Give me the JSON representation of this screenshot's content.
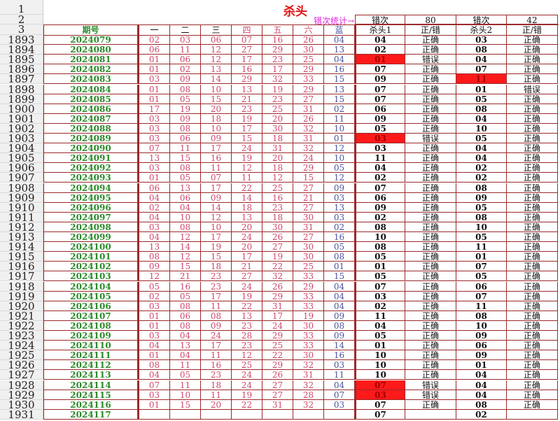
{
  "title": "杀头",
  "stat_label": "错次统计→",
  "stats": {
    "label1": "错次",
    "value1": "80",
    "label2": "错次",
    "value2": "42"
  },
  "header_row_numbers": [
    "1",
    "2",
    "3"
  ],
  "columns": [
    "期号",
    "一",
    "二",
    "三",
    "四",
    "五",
    "六",
    "蓝",
    "杀头1",
    "正/错",
    "杀头2",
    "正/错"
  ],
  "colors": {
    "highlight": "#ff1a1a",
    "period": "#2a8a2a",
    "number": "#d0486a",
    "blue": "#4a55a0",
    "border": "#9b2a2a"
  },
  "rows": [
    {
      "n": "1893",
      "period": "2024079",
      "nums": [
        "02",
        "03",
        "06",
        "07",
        "16",
        "26",
        "04"
      ],
      "k1": "04",
      "r1": "正确",
      "k2": "03",
      "r2": "正确"
    },
    {
      "n": "1894",
      "period": "2024080",
      "nums": [
        "06",
        "11",
        "12",
        "27",
        "29",
        "30",
        "13"
      ],
      "k1": "02",
      "r1": "正确",
      "k2": "08",
      "r2": "正确"
    },
    {
      "n": "1895",
      "period": "2024081",
      "nums": [
        "01",
        "06",
        "12",
        "17",
        "23",
        "25",
        "04"
      ],
      "k1": "01",
      "r1": "错误",
      "k2": "04",
      "r2": "正确",
      "h1": true
    },
    {
      "n": "1896",
      "period": "2024082",
      "nums": [
        "01",
        "02",
        "13",
        "16",
        "17",
        "29",
        "16"
      ],
      "k1": "07",
      "r1": "正确",
      "k2": "07",
      "r2": "正确"
    },
    {
      "n": "1897",
      "period": "2024083",
      "nums": [
        "03",
        "09",
        "14",
        "29",
        "32",
        "33",
        "15"
      ],
      "k1": "09",
      "r1": "正确",
      "k2": "11",
      "r2": "正确",
      "h2": true
    },
    {
      "n": "1898",
      "period": "2024084",
      "nums": [
        "01",
        "08",
        "10",
        "13",
        "19",
        "29",
        "13"
      ],
      "k1": "07",
      "r1": "正确",
      "k2": "01",
      "r2": "错误"
    },
    {
      "n": "1899",
      "period": "2024085",
      "nums": [
        "01",
        "05",
        "15",
        "21",
        "23",
        "27",
        "15"
      ],
      "k1": "07",
      "r1": "正确",
      "k2": "05",
      "r2": "正确"
    },
    {
      "n": "1900",
      "period": "2024086",
      "nums": [
        "17",
        "19",
        "20",
        "23",
        "25",
        "31",
        "02"
      ],
      "k1": "06",
      "r1": "正确",
      "k2": "08",
      "r2": "正确"
    },
    {
      "n": "1901",
      "period": "2024087",
      "nums": [
        "03",
        "09",
        "18",
        "19",
        "20",
        "26",
        "11"
      ],
      "k1": "09",
      "r1": "正确",
      "k2": "04",
      "r2": "正确"
    },
    {
      "n": "1902",
      "period": "2024088",
      "nums": [
        "03",
        "08",
        "10",
        "17",
        "30",
        "32",
        "10"
      ],
      "k1": "05",
      "r1": "正确",
      "k2": "10",
      "r2": "正确"
    },
    {
      "n": "1903",
      "period": "2024089",
      "nums": [
        "03",
        "06",
        "09",
        "15",
        "18",
        "31",
        "01"
      ],
      "k1": "03",
      "r1": "错误",
      "k2": "05",
      "r2": "正确",
      "h1": true
    },
    {
      "n": "1904",
      "period": "2024090",
      "nums": [
        "07",
        "11",
        "17",
        "24",
        "31",
        "32",
        "12"
      ],
      "k1": "03",
      "r1": "正确",
      "k2": "04",
      "r2": "正确"
    },
    {
      "n": "1905",
      "period": "2024091",
      "nums": [
        "13",
        "15",
        "16",
        "19",
        "20",
        "24",
        "10"
      ],
      "k1": "11",
      "r1": "正确",
      "k2": "04",
      "r2": "正确"
    },
    {
      "n": "1906",
      "period": "2024092",
      "nums": [
        "03",
        "08",
        "11",
        "12",
        "18",
        "29",
        "05"
      ],
      "k1": "04",
      "r1": "正确",
      "k2": "02",
      "r2": "正确"
    },
    {
      "n": "1907",
      "period": "2024093",
      "nums": [
        "01",
        "05",
        "07",
        "11",
        "12",
        "15",
        "12"
      ],
      "k1": "02",
      "r1": "正确",
      "k2": "02",
      "r2": "正确"
    },
    {
      "n": "1908",
      "period": "2024094",
      "nums": [
        "06",
        "13",
        "17",
        "22",
        "25",
        "27",
        "09"
      ],
      "k1": "07",
      "r1": "正确",
      "k2": "08",
      "r2": "正确"
    },
    {
      "n": "1909",
      "period": "2024095",
      "nums": [
        "04",
        "06",
        "09",
        "14",
        "16",
        "21",
        "03"
      ],
      "k1": "06",
      "r1": "正确",
      "k2": "09",
      "r2": "正确"
    },
    {
      "n": "1910",
      "period": "2024096",
      "nums": [
        "02",
        "04",
        "14",
        "18",
        "23",
        "27",
        "13"
      ],
      "k1": "09",
      "r1": "正确",
      "k2": "05",
      "r2": "正确"
    },
    {
      "n": "1911",
      "period": "2024097",
      "nums": [
        "04",
        "10",
        "12",
        "13",
        "18",
        "30",
        "03"
      ],
      "k1": "02",
      "r1": "正确",
      "k2": "08",
      "r2": "正确"
    },
    {
      "n": "1912",
      "period": "2024098",
      "nums": [
        "03",
        "08",
        "10",
        "20",
        "30",
        "31",
        "02"
      ],
      "k1": "08",
      "r1": "正确",
      "k2": "10",
      "r2": "正确"
    },
    {
      "n": "1913",
      "period": "2024099",
      "nums": [
        "04",
        "12",
        "17",
        "24",
        "26",
        "27",
        "16"
      ],
      "k1": "10",
      "r1": "正确",
      "k2": "05",
      "r2": "正确"
    },
    {
      "n": "1914",
      "period": "2024100",
      "nums": [
        "13",
        "14",
        "19",
        "20",
        "27",
        "30",
        "05"
      ],
      "k1": "08",
      "r1": "正确",
      "k2": "11",
      "r2": "正确"
    },
    {
      "n": "1915",
      "period": "2024101",
      "nums": [
        "08",
        "12",
        "15",
        "17",
        "19",
        "30",
        "08"
      ],
      "k1": "05",
      "r1": "正确",
      "k2": "01",
      "r2": "正确"
    },
    {
      "n": "1916",
      "period": "2024102",
      "nums": [
        "09",
        "15",
        "18",
        "21",
        "22",
        "25",
        "01"
      ],
      "k1": "01",
      "r1": "正确",
      "k2": "07",
      "r2": "正确"
    },
    {
      "n": "1917",
      "period": "2024103",
      "nums": [
        "12",
        "21",
        "23",
        "27",
        "32",
        "33",
        "15"
      ],
      "k1": "05",
      "r1": "正确",
      "k2": "05",
      "r2": "正确"
    },
    {
      "n": "1918",
      "period": "2024104",
      "nums": [
        "05",
        "16",
        "23",
        "24",
        "26",
        "29",
        "04"
      ],
      "k1": "07",
      "r1": "正确",
      "k2": "06",
      "r2": "正确"
    },
    {
      "n": "1919",
      "period": "2024105",
      "nums": [
        "02",
        "05",
        "17",
        "19",
        "29",
        "33",
        "04"
      ],
      "k1": "03",
      "r1": "正确",
      "k2": "07",
      "r2": "正确"
    },
    {
      "n": "1920",
      "period": "2024106",
      "nums": [
        "03",
        "08",
        "11",
        "22",
        "31",
        "33",
        "04"
      ],
      "k1": "02",
      "r1": "正确",
      "k2": "11",
      "r2": "正确"
    },
    {
      "n": "1921",
      "period": "2024107",
      "nums": [
        "01",
        "06",
        "08",
        "13",
        "17",
        "19",
        "09"
      ],
      "k1": "11",
      "r1": "正确",
      "k2": "08",
      "r2": "正确"
    },
    {
      "n": "1922",
      "period": "2024108",
      "nums": [
        "01",
        "08",
        "09",
        "23",
        "24",
        "30",
        "08"
      ],
      "k1": "04",
      "r1": "正确",
      "k2": "10",
      "r2": "正确"
    },
    {
      "n": "1923",
      "period": "2024109",
      "nums": [
        "03",
        "04",
        "24",
        "28",
        "29",
        "33",
        "09"
      ],
      "k1": "05",
      "r1": "正确",
      "k2": "09",
      "r2": "正确"
    },
    {
      "n": "1924",
      "period": "2024110",
      "nums": [
        "04",
        "13",
        "17",
        "23",
        "25",
        "33",
        "14"
      ],
      "k1": "01",
      "r1": "正确",
      "k2": "06",
      "r2": "正确"
    },
    {
      "n": "1925",
      "period": "2024111",
      "nums": [
        "01",
        "04",
        "11",
        "12",
        "22",
        "30",
        "16"
      ],
      "k1": "10",
      "r1": "正确",
      "k2": "09",
      "r2": "正确"
    },
    {
      "n": "1926",
      "period": "2024112",
      "nums": [
        "08",
        "11",
        "16",
        "25",
        "29",
        "32",
        "03"
      ],
      "k1": "10",
      "r1": "正确",
      "k2": "01",
      "r2": "正确"
    },
    {
      "n": "1927",
      "period": "2024113",
      "nums": [
        "04",
        "05",
        "23",
        "24",
        "26",
        "31",
        "11"
      ],
      "k1": "10",
      "r1": "正确",
      "k2": "04",
      "r2": "正确"
    },
    {
      "n": "1928",
      "period": "2024114",
      "nums": [
        "07",
        "11",
        "18",
        "24",
        "27",
        "32",
        "04"
      ],
      "k1": "07",
      "r1": "错误",
      "k2": "04",
      "r2": "正确",
      "h1": true
    },
    {
      "n": "1929",
      "period": "2024115",
      "nums": [
        "03",
        "10",
        "11",
        "19",
        "27",
        "28",
        "07"
      ],
      "k1": "03",
      "r1": "错误",
      "k2": "04",
      "r2": "正确",
      "h1": true
    },
    {
      "n": "1930",
      "period": "2024116",
      "nums": [
        "01",
        "15",
        "20",
        "22",
        "31",
        "32",
        "03"
      ],
      "k1": "07",
      "r1": "正确",
      "k2": "08",
      "r2": "正确"
    },
    {
      "n": "1931",
      "period": "2024117",
      "nums": [
        "",
        "",
        "",
        "",
        "",
        "",
        ""
      ],
      "k1": "07",
      "r1": "",
      "k2": "02",
      "r2": ""
    }
  ]
}
